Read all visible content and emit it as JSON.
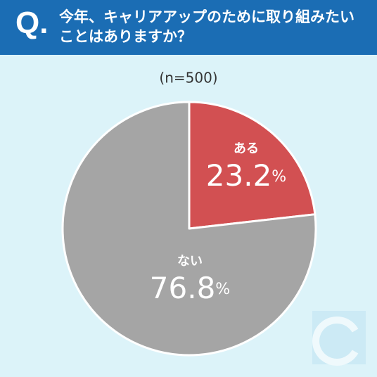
{
  "chart_data": {
    "type": "pie",
    "question_label": "Q.",
    "title": "今年、キャリアアップのために取り組みたいことはありますか？",
    "subtitle": "(n=500)",
    "categories": [
      "ある",
      "ない"
    ],
    "values": [
      23.2,
      76.8
    ],
    "value_labels": [
      "23.2%",
      "76.8%"
    ],
    "colors": [
      "#d25052",
      "#a5a5a5"
    ]
  }
}
